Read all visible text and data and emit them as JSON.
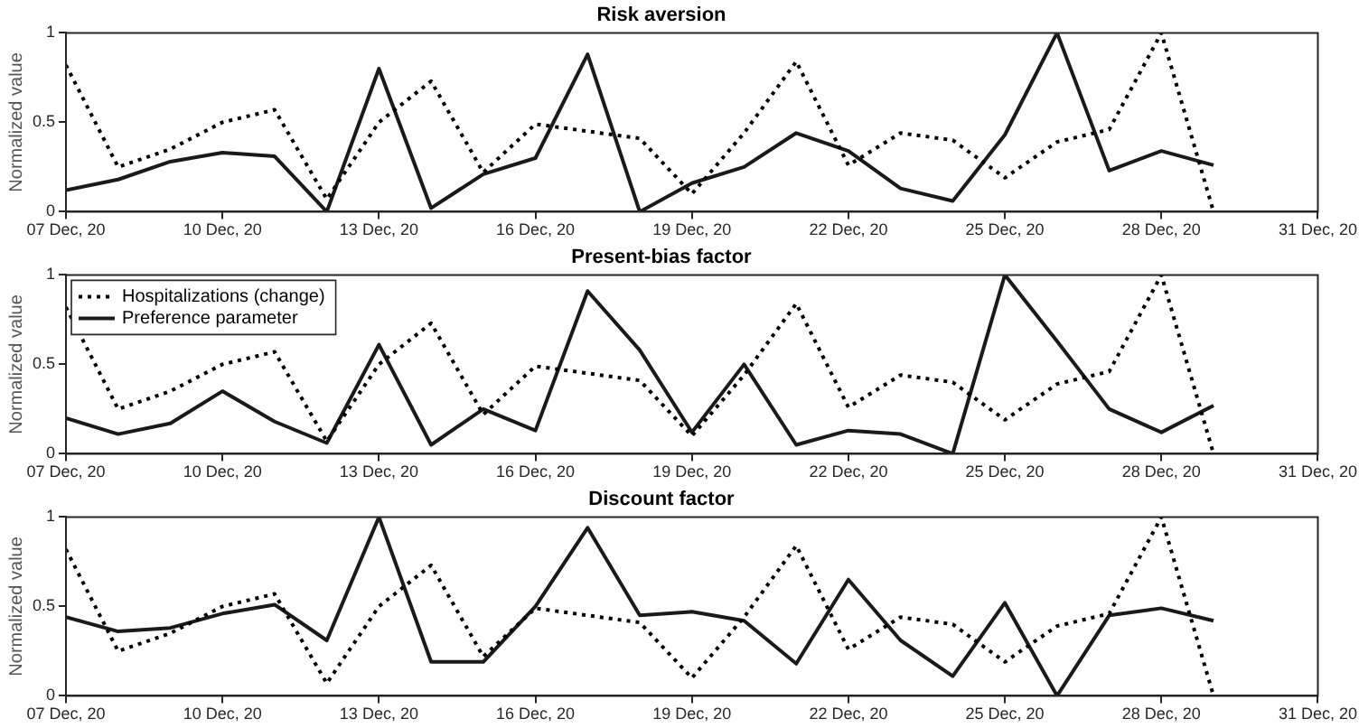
{
  "chart_data": [
    {
      "type": "line",
      "title": "Risk aversion",
      "ylabel": "Normalized value",
      "x": [
        "--12-07",
        "--12-08",
        "--12-09",
        "--12-10",
        "--12-11",
        "--12-12",
        "--12-13",
        "--12-14",
        "--12-15",
        "--12-16",
        "--12-17",
        "--12-18",
        "--12-19",
        "--12-20",
        "--12-21",
        "--12-22",
        "--12-23",
        "--12-24",
        "--12-25",
        "--12-26",
        "--12-27",
        "--12-28",
        "--12-29"
      ],
      "xlim": [
        "--12-07",
        "--12-31"
      ],
      "xticks": [
        {
          "value": "--12-07",
          "label": "07 Dec, 20"
        },
        {
          "value": "--12-10",
          "label": "10 Dec, 20"
        },
        {
          "value": "--12-13",
          "label": "13 Dec, 20"
        },
        {
          "value": "--12-16",
          "label": "16 Dec, 20"
        },
        {
          "value": "--12-19",
          "label": "19 Dec, 20"
        },
        {
          "value": "--12-22",
          "label": "22 Dec, 20"
        },
        {
          "value": "--12-25",
          "label": "25 Dec, 20"
        },
        {
          "value": "--12-28",
          "label": "28 Dec, 20"
        },
        {
          "value": "--12-31",
          "label": "31 Dec, 20"
        }
      ],
      "ylim": [
        0,
        1
      ],
      "yticks": [
        0,
        0.5,
        1
      ],
      "grid": false,
      "legend": false,
      "marker": "none",
      "series": [
        {
          "color": "#000000",
          "line_style": "dotted",
          "values": [
            0.82,
            0.25,
            0.35,
            0.5,
            0.57,
            0.07,
            0.5,
            0.73,
            0.22,
            0.49,
            0.45,
            0.41,
            0.1,
            0.44,
            0.84,
            0.26,
            0.44,
            0.4,
            0.19,
            0.39,
            0.46,
            1.0,
            0
          ]
        },
        {
          "color": "#1a1a1a",
          "line_style": "solid",
          "values": [
            0.12,
            0.18,
            0.28,
            0.33,
            0.31,
            0.0,
            0.8,
            0.02,
            0.21,
            0.3,
            0.88,
            0.0,
            0.16,
            0.25,
            0.44,
            0.34,
            0.13,
            0.06,
            0.43,
            1.0,
            0.23,
            0.34,
            0.26
          ]
        }
      ]
    },
    {
      "type": "line",
      "title": "Present-bias factor",
      "ylabel": "Normalized value",
      "x": [
        "--12-07",
        "--12-08",
        "--12-09",
        "--12-10",
        "--12-11",
        "--12-12",
        "--12-13",
        "--12-14",
        "--12-15",
        "--12-16",
        "--12-17",
        "--12-18",
        "--12-19",
        "--12-20",
        "--12-21",
        "--12-22",
        "--12-23",
        "--12-24",
        "--12-25",
        "--12-26",
        "--12-27",
        "--12-28",
        "--12-29"
      ],
      "xlim": [
        "--12-07",
        "--12-31"
      ],
      "xticks": [
        {
          "value": "--12-07",
          "label": "07 Dec, 20"
        },
        {
          "value": "--12-10",
          "label": "10 Dec, 20"
        },
        {
          "value": "--12-13",
          "label": "13 Dec, 20"
        },
        {
          "value": "--12-16",
          "label": "16 Dec, 20"
        },
        {
          "value": "--12-19",
          "label": "19 Dec, 20"
        },
        {
          "value": "--12-22",
          "label": "22 Dec, 20"
        },
        {
          "value": "--12-25",
          "label": "25 Dec, 20"
        },
        {
          "value": "--12-28",
          "label": "28 Dec, 20"
        },
        {
          "value": "--12-31",
          "label": "31 Dec, 20"
        }
      ],
      "ylim": [
        0,
        1
      ],
      "yticks": [
        0,
        0.5,
        1
      ],
      "grid": false,
      "legend": "top left",
      "marker": "none",
      "series": [
        {
          "name": "Hospitalizations (change)",
          "color": "#000000",
          "line_style": "dotted",
          "values": [
            0.82,
            0.25,
            0.35,
            0.5,
            0.57,
            0.07,
            0.5,
            0.73,
            0.22,
            0.49,
            0.45,
            0.41,
            0.1,
            0.44,
            0.84,
            0.26,
            0.44,
            0.4,
            0.19,
            0.39,
            0.46,
            1.0,
            0
          ]
        },
        {
          "name": "Preference parameter",
          "color": "#1a1a1a",
          "line_style": "solid",
          "values": [
            0.2,
            0.11,
            0.17,
            0.35,
            0.18,
            0.06,
            0.61,
            0.05,
            0.25,
            0.13,
            0.91,
            0.58,
            0.12,
            0.5,
            0.05,
            0.13,
            0.11,
            0.0,
            1.0,
            0.63,
            0.25,
            0.12,
            0.27
          ]
        }
      ]
    },
    {
      "type": "line",
      "title": "Discount factor",
      "ylabel": "Normalized value",
      "x": [
        "--12-07",
        "--12-08",
        "--12-09",
        "--12-10",
        "--12-11",
        "--12-12",
        "--12-13",
        "--12-14",
        "--12-15",
        "--12-16",
        "--12-17",
        "--12-18",
        "--12-19",
        "--12-20",
        "--12-21",
        "--12-22",
        "--12-23",
        "--12-24",
        "--12-25",
        "--12-26",
        "--12-27",
        "--12-28",
        "--12-29"
      ],
      "xlim": [
        "--12-07",
        "--12-31"
      ],
      "xticks": [
        {
          "value": "--12-07",
          "label": "07 Dec, 20"
        },
        {
          "value": "--12-10",
          "label": "10 Dec, 20"
        },
        {
          "value": "--12-13",
          "label": "13 Dec, 20"
        },
        {
          "value": "--12-16",
          "label": "16 Dec, 20"
        },
        {
          "value": "--12-19",
          "label": "19 Dec, 20"
        },
        {
          "value": "--12-22",
          "label": "22 Dec, 20"
        },
        {
          "value": "--12-25",
          "label": "25 Dec, 20"
        },
        {
          "value": "--12-28",
          "label": "28 Dec, 20"
        },
        {
          "value": "--12-31",
          "label": "31 Dec, 20"
        }
      ],
      "ylim": [
        0,
        1
      ],
      "yticks": [
        0,
        0.5,
        1
      ],
      "grid": false,
      "legend": false,
      "marker": "none",
      "series": [
        {
          "color": "#000000",
          "line_style": "dotted",
          "values": [
            0.82,
            0.25,
            0.35,
            0.5,
            0.57,
            0.07,
            0.5,
            0.73,
            0.22,
            0.49,
            0.45,
            0.41,
            0.1,
            0.44,
            0.84,
            0.26,
            0.44,
            0.4,
            0.19,
            0.39,
            0.46,
            1.0,
            0
          ]
        },
        {
          "color": "#1a1a1a",
          "line_style": "solid",
          "values": [
            0.44,
            0.36,
            0.38,
            0.46,
            0.51,
            0.31,
            1.0,
            0.19,
            0.19,
            0.5,
            0.94,
            0.45,
            0.47,
            0.42,
            0.18,
            0.65,
            0.31,
            0.11,
            0.52,
            0.0,
            0.45,
            0.49,
            0.42
          ]
        }
      ]
    }
  ]
}
